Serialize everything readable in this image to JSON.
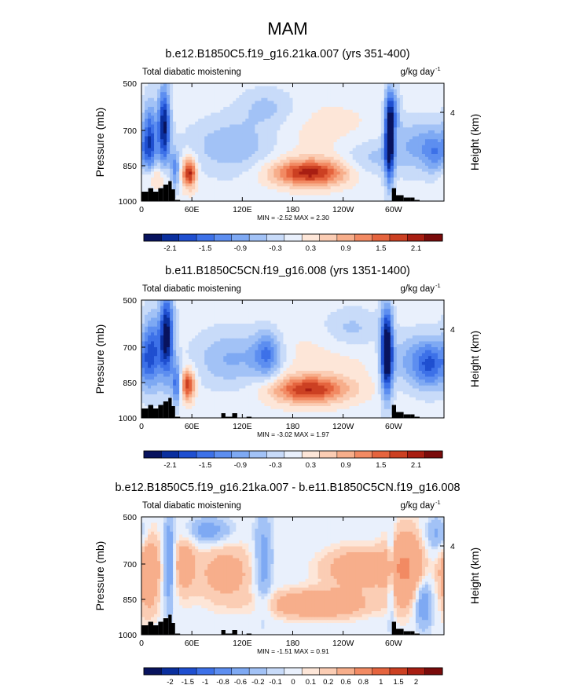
{
  "figure": {
    "title": "MAM"
  },
  "chart_data": [
    {
      "type": "heatmap",
      "title": "b.e12.B1850C5.f19_g16.21ka.007 (yrs 351-400)",
      "left_label": "Total diabatic moistening",
      "units": "g/kg day",
      "units_exp": "-1",
      "ylabel": "Pressure (mb)",
      "ylabel_right": "Height (km)",
      "x_ticks": [
        "0",
        "60E",
        "120E",
        "180",
        "120W",
        "60W"
      ],
      "y_ticks": [
        "500",
        "700",
        "850",
        "1000"
      ],
      "right_ticks": [
        "4"
      ],
      "xlim": [
        0,
        360
      ],
      "ylim": [
        1000,
        500
      ],
      "stats": "MIN =  -2.52  MAX =   2.30",
      "legend_labels": [
        "-2.1",
        "-1.5",
        "-0.9",
        "-0.3",
        "0.3",
        "0.9",
        "1.5",
        "2.1"
      ],
      "label_positions": [
        1,
        3,
        5,
        7,
        9,
        11,
        13,
        15
      ],
      "levels": [
        -2.4,
        -2.1,
        -1.8,
        -1.5,
        -1.2,
        -0.9,
        -0.6,
        -0.3,
        0,
        0.3,
        0.6,
        0.9,
        1.2,
        1.5,
        1.8,
        2.1,
        2.4
      ],
      "features": [
        {
          "lon": 10,
          "p": 740,
          "a": -1.7,
          "sx": 6,
          "sy": 110
        },
        {
          "lon": 27,
          "p": 680,
          "a": -2.3,
          "sx": 5,
          "sy": 120
        },
        {
          "lon": 40,
          "p": 870,
          "a": -1.2,
          "sx": 4,
          "sy": 60
        },
        {
          "lon": 57,
          "p": 880,
          "a": 2.1,
          "sx": 6,
          "sy": 45
        },
        {
          "lon": 15,
          "p": 900,
          "a": 0.8,
          "sx": 12,
          "sy": 40
        },
        {
          "lon": 110,
          "p": 760,
          "a": -0.9,
          "sx": 40,
          "sy": 90
        },
        {
          "lon": 150,
          "p": 600,
          "a": -0.6,
          "sx": 25,
          "sy": 60
        },
        {
          "lon": 200,
          "p": 880,
          "a": 2.0,
          "sx": 32,
          "sy": 40
        },
        {
          "lon": 180,
          "p": 720,
          "a": 0.3,
          "sx": 90,
          "sy": 120
        },
        {
          "lon": 270,
          "p": 820,
          "a": -0.6,
          "sx": 25,
          "sy": 60
        },
        {
          "lon": 295,
          "p": 740,
          "a": -2.5,
          "sx": 4,
          "sy": 130
        },
        {
          "lon": 300,
          "p": 620,
          "a": -1.0,
          "sx": 6,
          "sy": 70
        },
        {
          "lon": 330,
          "p": 760,
          "a": -0.9,
          "sx": 25,
          "sy": 80
        },
        {
          "lon": 350,
          "p": 800,
          "a": -0.8,
          "sx": 10,
          "sy": 60
        }
      ],
      "terrain": [
        [
          0,
          960
        ],
        [
          8,
          945
        ],
        [
          14,
          960
        ],
        [
          20,
          945
        ],
        [
          26,
          930
        ],
        [
          32,
          915
        ],
        [
          36,
          950
        ],
        [
          40,
          995
        ],
        [
          298,
          945
        ],
        [
          303,
          975
        ],
        [
          312,
          985
        ],
        [
          320,
          985
        ],
        [
          325,
          995
        ]
      ]
    },
    {
      "type": "heatmap",
      "title": "b.e11.B1850C5CN.f19_g16.008 (yrs 1351-1400)",
      "left_label": "Total diabatic moistening",
      "units": "g/kg day",
      "units_exp": "-1",
      "ylabel": "Pressure (mb)",
      "ylabel_right": "Height (km)",
      "x_ticks": [
        "0",
        "60E",
        "120E",
        "180",
        "120W",
        "60W"
      ],
      "y_ticks": [
        "500",
        "700",
        "850",
        "1000"
      ],
      "right_ticks": [
        "4"
      ],
      "xlim": [
        0,
        360
      ],
      "ylim": [
        1000,
        500
      ],
      "stats": "MIN =  -3.02  MAX =   1.97",
      "legend_labels": [
        "-2.1",
        "-1.5",
        "-0.9",
        "-0.3",
        "0.3",
        "0.9",
        "1.5",
        "2.1"
      ],
      "label_positions": [
        1,
        3,
        5,
        7,
        9,
        11,
        13,
        15
      ],
      "levels": [
        -2.4,
        -2.1,
        -1.8,
        -1.5,
        -1.2,
        -0.9,
        -0.6,
        -0.3,
        0,
        0.3,
        0.6,
        0.9,
        1.2,
        1.5,
        1.8,
        2.1,
        2.4
      ],
      "features": [
        {
          "lon": 12,
          "p": 720,
          "a": -1.6,
          "sx": 8,
          "sy": 110
        },
        {
          "lon": 30,
          "p": 650,
          "a": -2.4,
          "sx": 6,
          "sy": 130
        },
        {
          "lon": 42,
          "p": 860,
          "a": -1.5,
          "sx": 4,
          "sy": 60
        },
        {
          "lon": 55,
          "p": 860,
          "a": 1.9,
          "sx": 6,
          "sy": 45
        },
        {
          "lon": 110,
          "p": 750,
          "a": -1.0,
          "sx": 35,
          "sy": 90
        },
        {
          "lon": 150,
          "p": 730,
          "a": -1.2,
          "sx": 12,
          "sy": 70
        },
        {
          "lon": 200,
          "p": 880,
          "a": 1.8,
          "sx": 32,
          "sy": 40
        },
        {
          "lon": 180,
          "p": 760,
          "a": 0.3,
          "sx": 90,
          "sy": 120
        },
        {
          "lon": 250,
          "p": 620,
          "a": -0.6,
          "sx": 25,
          "sy": 60
        },
        {
          "lon": 292,
          "p": 720,
          "a": -2.9,
          "sx": 5,
          "sy": 130
        },
        {
          "lon": 330,
          "p": 760,
          "a": -1.1,
          "sx": 25,
          "sy": 80
        },
        {
          "lon": 345,
          "p": 780,
          "a": -0.9,
          "sx": 12,
          "sy": 70
        }
      ],
      "terrain": [
        [
          0,
          960
        ],
        [
          8,
          945
        ],
        [
          14,
          960
        ],
        [
          20,
          945
        ],
        [
          26,
          930
        ],
        [
          32,
          915
        ],
        [
          36,
          950
        ],
        [
          40,
          995
        ],
        [
          95,
          980
        ],
        [
          100,
          995
        ],
        [
          108,
          980
        ],
        [
          125,
          995
        ],
        [
          298,
          945
        ],
        [
          303,
          975
        ],
        [
          312,
          985
        ],
        [
          320,
          985
        ],
        [
          325,
          995
        ]
      ]
    },
    {
      "type": "heatmap",
      "title": "b.e12.B1850C5.f19_g16.21ka.007 - b.e11.B1850C5CN.f19_g16.008",
      "left_label": "Total diabatic moistening",
      "units": "g/kg day",
      "units_exp": "-1",
      "ylabel": "Pressure (mb)",
      "ylabel_right": "Height (km)",
      "x_ticks": [
        "0",
        "60E",
        "120E",
        "180",
        "120W",
        "60W"
      ],
      "y_ticks": [
        "500",
        "700",
        "850",
        "1000"
      ],
      "right_ticks": [
        "4"
      ],
      "xlim": [
        0,
        360
      ],
      "ylim": [
        1000,
        500
      ],
      "stats": "MIN =  -1.51  MAX =   0.91",
      "legend_labels": [
        "-2",
        "-1.5",
        "-1",
        "-0.8",
        "-0.6",
        "-0.2",
        "-0.1",
        "0",
        "0.1",
        "0.2",
        "0.6",
        "0.8",
        "1",
        "1.5",
        "2"
      ],
      "label_positions": [
        1,
        2,
        3,
        4,
        5,
        6,
        7,
        8,
        9,
        10,
        11,
        12,
        13,
        14,
        15
      ],
      "levels": [
        -3,
        -2,
        -1.5,
        -1,
        -0.8,
        -0.6,
        -0.2,
        -0.1,
        0,
        0.1,
        0.2,
        0.6,
        0.8,
        1,
        1.5,
        2,
        3
      ],
      "features": [
        {
          "lon": 8,
          "p": 720,
          "a": 0.5,
          "sx": 10,
          "sy": 120
        },
        {
          "lon": 33,
          "p": 700,
          "a": -0.4,
          "sx": 5,
          "sy": 140
        },
        {
          "lon": 50,
          "p": 700,
          "a": 0.3,
          "sx": 10,
          "sy": 90
        },
        {
          "lon": 80,
          "p": 560,
          "a": -0.3,
          "sx": 20,
          "sy": 40
        },
        {
          "lon": 100,
          "p": 740,
          "a": 0.3,
          "sx": 25,
          "sy": 90
        },
        {
          "lon": 145,
          "p": 700,
          "a": -0.3,
          "sx": 8,
          "sy": 150
        },
        {
          "lon": 210,
          "p": 870,
          "a": 0.5,
          "sx": 40,
          "sy": 40
        },
        {
          "lon": 260,
          "p": 720,
          "a": 0.4,
          "sx": 30,
          "sy": 60
        },
        {
          "lon": 297,
          "p": 740,
          "a": -0.3,
          "sx": 3,
          "sy": 160
        },
        {
          "lon": 315,
          "p": 720,
          "a": 0.6,
          "sx": 15,
          "sy": 110
        },
        {
          "lon": 335,
          "p": 860,
          "a": -0.4,
          "sx": 8,
          "sy": 80
        },
        {
          "lon": 355,
          "p": 580,
          "a": -0.3,
          "sx": 12,
          "sy": 60
        }
      ],
      "terrain": [
        [
          0,
          960
        ],
        [
          8,
          945
        ],
        [
          14,
          960
        ],
        [
          20,
          945
        ],
        [
          26,
          930
        ],
        [
          32,
          915
        ],
        [
          36,
          950
        ],
        [
          40,
          995
        ],
        [
          95,
          980
        ],
        [
          100,
          995
        ],
        [
          108,
          980
        ],
        [
          125,
          995
        ],
        [
          298,
          945
        ],
        [
          303,
          975
        ],
        [
          312,
          985
        ],
        [
          320,
          985
        ],
        [
          325,
          995
        ]
      ]
    }
  ],
  "colors": {
    "diverging": [
      "#08135e",
      "#0a2f9e",
      "#1f4fd0",
      "#3d71e8",
      "#5d8ef0",
      "#7ea9f3",
      "#a2c2f6",
      "#c8dbf9",
      "#e9f0fc",
      "#fde6d8",
      "#fbcdb4",
      "#f7ae8b",
      "#f28a63",
      "#e5643e",
      "#cc4022",
      "#a81e12",
      "#7a0b0b"
    ]
  }
}
